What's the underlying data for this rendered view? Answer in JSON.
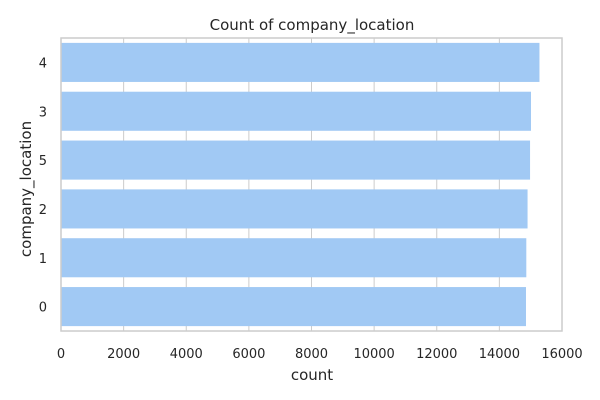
{
  "chart_data": {
    "type": "bar",
    "orientation": "horizontal",
    "title": "Count of company_location",
    "xlabel": "count",
    "ylabel": "company_location",
    "categories": [
      "4",
      "3",
      "5",
      "2",
      "1",
      "0"
    ],
    "values": [
      15280,
      15010,
      14980,
      14900,
      14860,
      14850
    ],
    "xlim": [
      0,
      16000
    ],
    "xticks": [
      "0",
      "2000",
      "4000",
      "6000",
      "8000",
      "10000",
      "12000",
      "14000",
      "16000"
    ],
    "grid": "vertical",
    "bar_color": "#a1c9f4",
    "grid_color": "#cccccc",
    "frame_color": "#cccccc"
  }
}
